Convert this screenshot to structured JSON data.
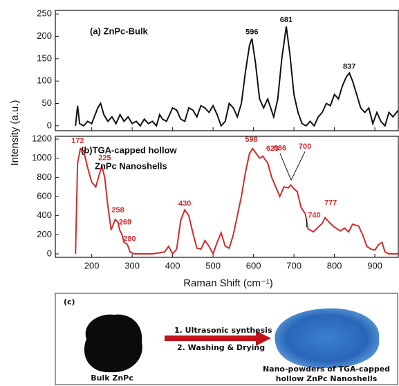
{
  "figure": {
    "ylabel": "Intensity (a.u.)",
    "xlabel": "Raman Shift (cm⁻¹)"
  },
  "chart_data": [
    {
      "type": "line",
      "title": "(a) ZnPc-Bulk",
      "xlim": [
        110,
        958
      ],
      "ylim": [
        -11,
        258
      ],
      "yticks": [
        0,
        50,
        100,
        150,
        200,
        250
      ],
      "x": [
        160,
        165,
        170,
        180,
        190,
        200,
        215,
        222,
        230,
        240,
        250,
        260,
        270,
        280,
        290,
        300,
        310,
        320,
        330,
        340,
        350,
        360,
        368,
        375,
        385,
        395,
        400,
        410,
        420,
        430,
        440,
        450,
        460,
        470,
        480,
        490,
        500,
        510,
        520,
        530,
        540,
        550,
        560,
        570,
        580,
        590,
        596,
        605,
        615,
        625,
        635,
        650,
        660,
        670,
        681,
        690,
        700,
        710,
        720,
        730,
        740,
        750,
        760,
        770,
        780,
        790,
        800,
        810,
        820,
        830,
        837,
        845,
        855,
        865,
        875,
        885,
        895,
        905,
        915,
        925,
        935,
        945,
        958
      ],
      "series": [
        {
          "color": "#111111",
          "values": [
            0,
            45,
            5,
            0,
            10,
            5,
            40,
            50,
            25,
            10,
            20,
            5,
            25,
            10,
            20,
            5,
            10,
            0,
            15,
            5,
            10,
            0,
            25,
            15,
            10,
            30,
            40,
            35,
            15,
            10,
            40,
            35,
            20,
            45,
            40,
            30,
            45,
            25,
            0,
            10,
            50,
            40,
            20,
            50,
            120,
            180,
            195,
            140,
            60,
            40,
            60,
            20,
            60,
            150,
            222,
            160,
            70,
            30,
            5,
            0,
            10,
            0,
            20,
            30,
            50,
            45,
            70,
            60,
            90,
            110,
            118,
            100,
            70,
            40,
            30,
            40,
            5,
            30,
            10,
            0,
            30,
            20,
            35
          ]
        }
      ],
      "peak_labels": [
        "596",
        "681",
        "837"
      ]
    },
    {
      "type": "line",
      "title_lines": [
        "(b)TGA-capped hollow",
        "ZnPc Nanoshells"
      ],
      "xlim": [
        110,
        958
      ],
      "ylim": [
        -36,
        1229
      ],
      "yticks": [
        0,
        200,
        400,
        600,
        800,
        1000,
        1200
      ],
      "xticks": [
        200,
        300,
        400,
        500,
        600,
        700,
        800,
        900
      ],
      "x": [
        160,
        165,
        172,
        180,
        190,
        200,
        210,
        218,
        225,
        232,
        240,
        248,
        258,
        265,
        269,
        275,
        280,
        288,
        295,
        305,
        320,
        350,
        380,
        390,
        400,
        410,
        420,
        430,
        440,
        450,
        460,
        470,
        480,
        490,
        500,
        510,
        520,
        530,
        540,
        550,
        560,
        570,
        580,
        590,
        598,
        605,
        615,
        623,
        635,
        645,
        655,
        665,
        675,
        686,
        692,
        700,
        708,
        718,
        728,
        735,
        740,
        748,
        760,
        770,
        777,
        787,
        800,
        815,
        825,
        835,
        845,
        860,
        870,
        880,
        890,
        900,
        910,
        918,
        925,
        935,
        958
      ],
      "series": [
        {
          "color": "#d42a2a",
          "values": [
            0,
            950,
            1100,
            1080,
            900,
            750,
            700,
            820,
            920,
            800,
            500,
            250,
            360,
            330,
            250,
            200,
            120,
            100,
            20,
            0,
            0,
            0,
            20,
            80,
            0,
            50,
            350,
            460,
            400,
            220,
            60,
            50,
            140,
            80,
            0,
            120,
            220,
            80,
            60,
            200,
            400,
            600,
            850,
            1050,
            1100,
            1060,
            1000,
            1020,
            950,
            800,
            700,
            600,
            700,
            690,
            720,
            680,
            650,
            480,
            420,
            260,
            250,
            230,
            280,
            320,
            380,
            330,
            280,
            240,
            270,
            230,
            310,
            290,
            200,
            80,
            50,
            40,
            100,
            120,
            20,
            0,
            0
          ]
        }
      ],
      "peak_labels": [
        "172",
        "225",
        "258",
        "269",
        "280",
        "430",
        "598",
        "623",
        "686",
        "700",
        "740",
        "777"
      ]
    }
  ],
  "panel_c": {
    "label": "(c)",
    "step1": "1. Ultrasonic synthesis",
    "step2": "2. Washing & Drying",
    "left_caption": "Bulk ZnPc",
    "right_caption": [
      "Nano-powders of TGA-capped",
      "hollow ZnPc Nanoshells"
    ]
  }
}
